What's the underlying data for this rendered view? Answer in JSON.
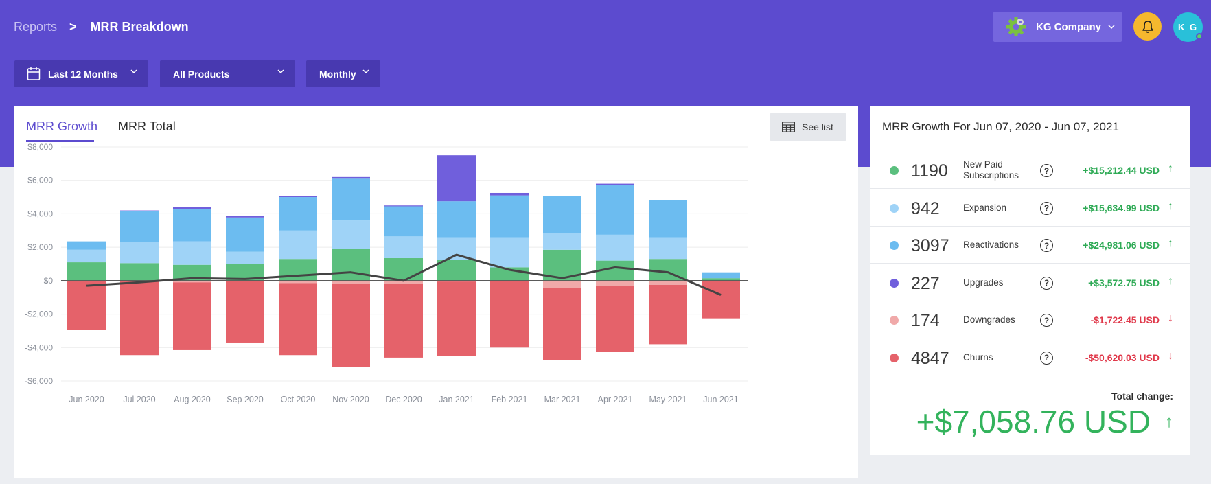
{
  "breadcrumb": {
    "root": "Reports",
    "separator": ">",
    "current": "MRR Breakdown"
  },
  "header": {
    "company": "KG Company",
    "avatar_initials": "K G"
  },
  "filters": {
    "date_range": "Last 12 Months",
    "products": "All Products",
    "interval": "Monthly"
  },
  "tabs": {
    "growth": "MRR Growth",
    "total": "MRR Total"
  },
  "see_list": "See list",
  "colors": {
    "accent": "#5c4bcf",
    "new_paid": "#5bbf7e",
    "expansion": "#9fd3f7",
    "reactivations": "#6cbcf0",
    "upgrades": "#705fdc",
    "downgrades": "#f0a9a9",
    "churns": "#e5626a",
    "net_line": "#444444"
  },
  "chart_data": {
    "type": "bar",
    "stacked": true,
    "categories": [
      "Jun 2020",
      "Jul 2020",
      "Aug 2020",
      "Sep 2020",
      "Oct 2020",
      "Nov 2020",
      "Dec 2020",
      "Jan 2021",
      "Feb 2021",
      "Mar 2021",
      "Apr 2021",
      "May 2021",
      "Jun 2021"
    ],
    "ylim": [
      -6000,
      8000
    ],
    "yticks": [
      8000,
      6000,
      4000,
      2000,
      0,
      -2000,
      -4000,
      -6000
    ],
    "ytick_labels": [
      "$8,000",
      "$6,000",
      "$4,000",
      "$2,000",
      "$0",
      "-$2,000",
      "-$4,000",
      "-$6,000"
    ],
    "grid": true,
    "series": [
      {
        "key": "new_paid",
        "values": [
          1100,
          1050,
          950,
          980,
          1300,
          1900,
          1350,
          1250,
          800,
          1850,
          1200,
          1300,
          150
        ]
      },
      {
        "key": "expansion",
        "values": [
          750,
          1250,
          1400,
          750,
          1700,
          1700,
          1300,
          1350,
          1800,
          1000,
          1550,
          1300,
          0
        ]
      },
      {
        "key": "reactivations",
        "values": [
          500,
          1850,
          1950,
          2050,
          2000,
          2500,
          1800,
          2150,
          2500,
          2200,
          2950,
          2200,
          350
        ]
      },
      {
        "key": "upgrades",
        "values": [
          0,
          50,
          100,
          100,
          50,
          100,
          50,
          2750,
          150,
          0,
          100,
          0,
          0
        ]
      },
      {
        "key": "downgrades",
        "values": [
          0,
          0,
          -100,
          0,
          -150,
          -200,
          -200,
          -50,
          0,
          -450,
          -300,
          -250,
          0
        ]
      },
      {
        "key": "churns",
        "values": [
          -2950,
          -4450,
          -4050,
          -3700,
          -4300,
          -4950,
          -4400,
          -4450,
          -4000,
          -4300,
          -3950,
          -3550,
          -2250
        ]
      }
    ],
    "net_line": [
      -300,
      -100,
      150,
      100,
      300,
      500,
      0,
      1550,
      650,
      150,
      800,
      500,
      -850
    ]
  },
  "summary": {
    "title": "MRR Growth For Jun 07, 2020 - Jun 07, 2021",
    "rows": [
      {
        "count": "1190",
        "label": "New Paid Subscriptions",
        "amount": "+$15,212.44 USD",
        "arrow": "↑",
        "color": "#5bbf7e"
      },
      {
        "count": "942",
        "label": "Expansion",
        "amount": "+$15,634.99 USD",
        "arrow": "↑",
        "color": "#9fd3f7"
      },
      {
        "count": "3097",
        "label": "Reactivations",
        "amount": "+$24,981.06 USD",
        "arrow": "↑",
        "color": "#6cbcf0"
      },
      {
        "count": "227",
        "label": "Upgrades",
        "amount": "+$3,572.75 USD",
        "arrow": "↑",
        "color": "#705fdc"
      },
      {
        "count": "174",
        "label": "Downgrades",
        "amount": "-$1,722.45 USD",
        "arrow": "↓",
        "color": "#f0a9a9"
      },
      {
        "count": "4847",
        "label": "Churns",
        "amount": "-$50,620.03 USD",
        "arrow": "↓",
        "color": "#e5626a"
      }
    ],
    "help_glyph": "?",
    "total_label": "Total change:",
    "total_value": "+$7,058.76 USD",
    "total_arrow": "↑"
  }
}
